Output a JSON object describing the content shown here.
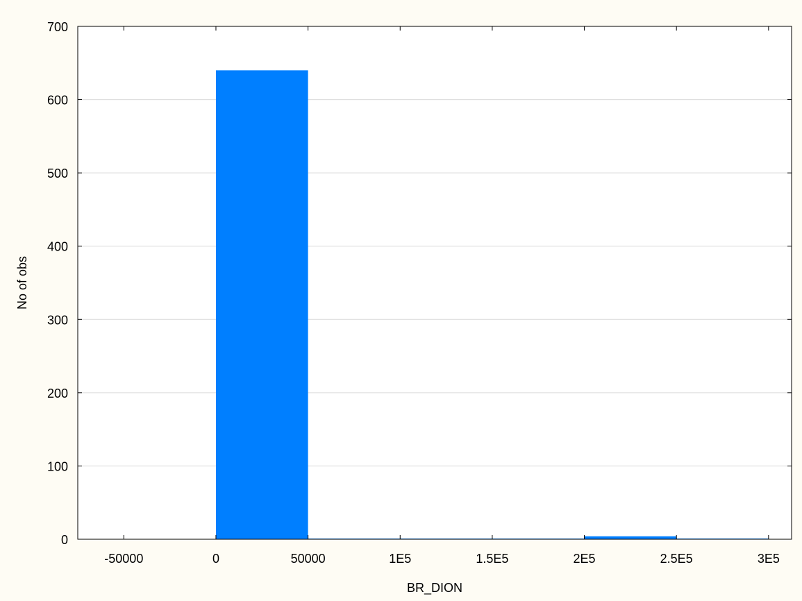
{
  "chart_data": {
    "type": "bar",
    "title": "",
    "xlabel": "BR_DION",
    "ylabel": "No of obs",
    "bin_width": 50000,
    "x": [
      25000,
      75000,
      125000,
      175000,
      225000,
      275000
    ],
    "values": [
      640,
      0,
      0,
      0,
      4,
      1
    ],
    "xlim": [
      -75000,
      312500
    ],
    "ylim": [
      0,
      700
    ],
    "x_ticks": [
      -50000,
      0,
      50000,
      100000,
      150000,
      200000,
      250000,
      300000
    ],
    "x_tick_labels": [
      "-50000",
      "0",
      "50000",
      "1E5",
      "1.5E5",
      "2E5",
      "2.5E5",
      "3E5"
    ],
    "y_ticks": [
      0,
      100,
      200,
      300,
      400,
      500,
      600,
      700
    ],
    "y_tick_labels": [
      "0",
      "100",
      "200",
      "300",
      "400",
      "500",
      "600",
      "700"
    ],
    "grid": "horizontal",
    "colors": {
      "bar": "#007fff",
      "background": "#fefcf4",
      "plot_background": "#ffffff",
      "grid": "#d9d9d9",
      "axis": "#000000"
    }
  }
}
